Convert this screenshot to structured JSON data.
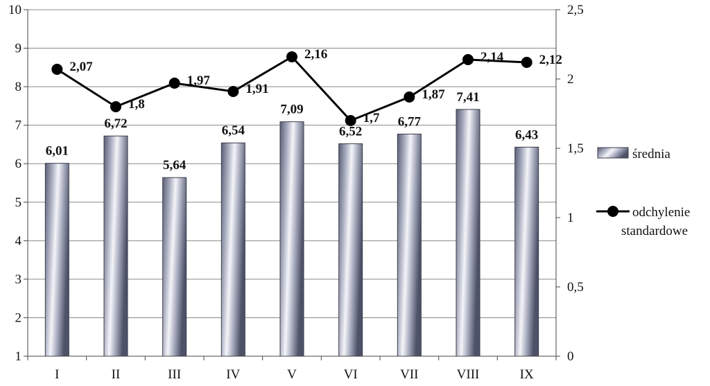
{
  "chart_data": {
    "type": "bar",
    "categories": [
      "I",
      "II",
      "III",
      "IV",
      "V",
      "VI",
      "VII",
      "VIII",
      "IX"
    ],
    "series": [
      {
        "name": "średnia",
        "type": "bar",
        "axis": "left",
        "values": [
          6.01,
          6.72,
          5.64,
          6.54,
          7.09,
          6.52,
          6.77,
          7.41,
          6.43
        ],
        "labels": [
          "6,01",
          "6,72",
          "5,64",
          "6,54",
          "7,09",
          "6,52",
          "6,77",
          "7,41",
          "6,43"
        ]
      },
      {
        "name": "odchylenie standardowe",
        "name_lines": [
          "odchylenie",
          "standardowe"
        ],
        "type": "line",
        "axis": "right",
        "values": [
          2.07,
          1.8,
          1.97,
          1.91,
          2.16,
          1.7,
          1.87,
          2.14,
          2.12
        ],
        "labels": [
          "2,07",
          "1,8",
          "1,97",
          "1,91",
          "2,16",
          "1,7",
          "1,87",
          "2,14",
          "2,12"
        ]
      }
    ],
    "y_left": {
      "lim": [
        1,
        10
      ],
      "ticks": [
        1,
        2,
        3,
        4,
        5,
        6,
        7,
        8,
        9,
        10
      ],
      "tick_labels": [
        "1",
        "2",
        "3",
        "4",
        "5",
        "6",
        "7",
        "8",
        "9",
        "10"
      ]
    },
    "y_right": {
      "lim": [
        0,
        2.5
      ],
      "ticks": [
        0,
        0.5,
        1,
        1.5,
        2,
        2.5
      ],
      "tick_labels": [
        "0",
        "0,5",
        "1",
        "1,5",
        "2",
        "2,5"
      ]
    },
    "grid": true,
    "legend_position": "right",
    "colors": {
      "bar_edge": "#3a3a4a",
      "line": "#000000",
      "grid": "#888888"
    }
  }
}
